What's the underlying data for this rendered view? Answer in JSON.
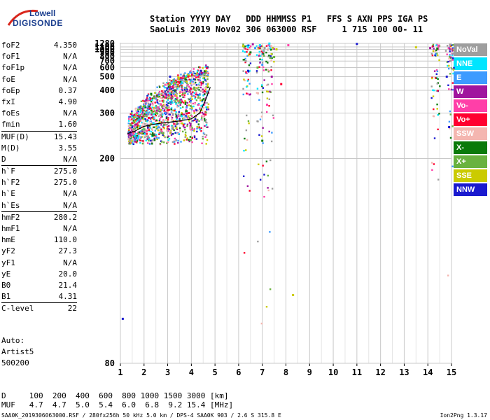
{
  "brand": {
    "line1": "Lowell",
    "line2": "DIGISONDE"
  },
  "header": {
    "line1": "Station YYYY DAY   DDD HHMMSS P1   FFS S AXN PPS IGA PS",
    "line2": "SaoLuis 2019 Nov02 306 063000 RSF     1 715 100 00- 11"
  },
  "params": [
    {
      "k": "foF2",
      "v": "4.350"
    },
    {
      "k": "foF1",
      "v": "N/A"
    },
    {
      "k": "foF1p",
      "v": "N/A"
    },
    {
      "k": "foE",
      "v": "N/A"
    },
    {
      "k": "foEp",
      "v": "0.37"
    },
    {
      "k": "fxI",
      "v": "4.90"
    },
    {
      "k": "foEs",
      "v": "N/A"
    },
    {
      "k": "fmin",
      "v": "1.60"
    },
    {
      "k": "MUF(D)",
      "v": "15.43",
      "sep": true
    },
    {
      "k": "M(D)",
      "v": "3.55"
    },
    {
      "k": "D",
      "v": "N/A"
    },
    {
      "k": "h`F",
      "v": "275.0",
      "sep": true
    },
    {
      "k": "h`F2",
      "v": "275.0"
    },
    {
      "k": "h`E",
      "v": "N/A"
    },
    {
      "k": "h`Es",
      "v": "N/A"
    },
    {
      "k": "hmF2",
      "v": "280.2",
      "sep": true
    },
    {
      "k": "hmF1",
      "v": "N/A"
    },
    {
      "k": "hmE",
      "v": "110.0"
    },
    {
      "k": "yF2",
      "v": "27.3"
    },
    {
      "k": "yF1",
      "v": "N/A"
    },
    {
      "k": "yE",
      "v": "20.0"
    },
    {
      "k": "B0",
      "v": "21.4"
    },
    {
      "k": "B1",
      "v": "4.31"
    },
    {
      "k": "C-level",
      "v": "22",
      "sep": true
    }
  ],
  "auto": {
    "line1": "Auto:",
    "line2": "Artist5",
    "line3": "500200"
  },
  "dmuf": {
    "d_row": "D     100  200  400  600  800 1000 1500 3000 [km]",
    "muf_row": "MUF   4.7  4.7  5.0  5.4  6.0  6.8  9.2 15.4 [MHz]"
  },
  "footer": {
    "left": "SAA0K_2019306063000.RSF / 280fx256h 50 kHz 5.0 km / DPS-4 SAA0K 903 / 2.6 S 315.8 E",
    "right": "Ion2Png 1.3.17"
  },
  "legend": [
    {
      "label": "NoVal",
      "color": "#9e9e9e"
    },
    {
      "label": "NNE",
      "color": "#00e5ff"
    },
    {
      "label": "E",
      "color": "#3d9bff"
    },
    {
      "label": "W",
      "color": "#a0159e"
    },
    {
      "label": "Vo-",
      "color": "#ff3fa8"
    },
    {
      "label": "Vo+",
      "color": "#ff0030"
    },
    {
      "label": "SSW",
      "color": "#f4b6b0"
    },
    {
      "label": "X-",
      "color": "#0a7a0a"
    },
    {
      "label": "X+",
      "color": "#69b23f"
    },
    {
      "label": "SSE",
      "color": "#cbcb00"
    },
    {
      "label": "NNW",
      "color": "#1a1acf"
    }
  ],
  "chart_data": {
    "type": "scatter",
    "title": "",
    "xlabel": "",
    "ylabel": "",
    "xlim": [
      1,
      15
    ],
    "ylim": [
      80,
      1280
    ],
    "x_ticks": [
      1,
      2,
      3,
      4,
      5,
      6,
      7,
      8,
      9,
      10,
      11,
      12,
      13,
      14,
      15
    ],
    "y_ticks": [
      80,
      200,
      300,
      400,
      500,
      600,
      700,
      800,
      900,
      1000,
      1100,
      1280
    ],
    "y_scale": "reciprocal",
    "grid": true,
    "series": [
      {
        "name": "NoVal",
        "points": [
          [
            1.4,
            230
          ],
          [
            2.0,
            250
          ],
          [
            3.2,
            260
          ],
          [
            6.3,
            700
          ],
          [
            7.1,
            1050
          ]
        ]
      },
      {
        "name": "NNE",
        "points": [
          [
            1.6,
            240
          ],
          [
            2.4,
            270
          ],
          [
            3.6,
            290
          ],
          [
            6.4,
            1100
          ],
          [
            6.9,
            1180
          ],
          [
            7.3,
            1270
          ]
        ]
      },
      {
        "name": "E",
        "points": [
          [
            1.8,
            280
          ],
          [
            2.9,
            300
          ],
          [
            3.8,
            320
          ],
          [
            6.7,
            1050
          ],
          [
            7.0,
            640
          ]
        ]
      },
      {
        "name": "W",
        "points": [
          [
            2.1,
            350
          ],
          [
            3.1,
            420
          ],
          [
            4.0,
            380
          ],
          [
            6.6,
            1230
          ],
          [
            7.4,
            500
          ],
          [
            14.1,
            1050
          ]
        ]
      },
      {
        "name": "Vo-",
        "points": [
          [
            1.7,
            300
          ],
          [
            2.6,
            320
          ],
          [
            3.4,
            360
          ],
          [
            4.3,
            330
          ],
          [
            7.2,
            330
          ],
          [
            8.1,
            1180
          ]
        ]
      },
      {
        "name": "Vo+",
        "points": [
          [
            1.5,
            270
          ],
          [
            2.2,
            285
          ],
          [
            3.0,
            310
          ],
          [
            3.9,
            300
          ],
          [
            4.6,
            295
          ],
          [
            7.8,
            440
          ]
        ]
      },
      {
        "name": "SSW",
        "points": [
          [
            1.9,
            260
          ],
          [
            2.8,
            275
          ],
          [
            3.7,
            285
          ],
          [
            4.5,
            290
          ]
        ]
      },
      {
        "name": "X-",
        "points": [
          [
            2.3,
            380
          ],
          [
            3.3,
            400
          ],
          [
            6.5,
            900
          ],
          [
            7.0,
            230
          ],
          [
            14.4,
            1030
          ]
        ]
      },
      {
        "name": "X+",
        "points": [
          [
            2.5,
            300
          ],
          [
            3.5,
            340
          ],
          [
            4.1,
            410
          ],
          [
            6.8,
            600
          ],
          [
            7.5,
            780
          ]
        ]
      },
      {
        "name": "SSE",
        "points": [
          [
            2.7,
            310
          ],
          [
            3.8,
            460
          ],
          [
            6.2,
            1150
          ],
          [
            7.6,
            1000
          ],
          [
            8.3,
            100
          ],
          [
            13.5,
            1080
          ]
        ]
      },
      {
        "name": "NNW",
        "points": [
          [
            1.1,
            92
          ],
          [
            3.1,
            500
          ],
          [
            4.4,
            560
          ],
          [
            6.4,
            560
          ],
          [
            11.0,
            1250
          ],
          [
            14.8,
            500
          ],
          [
            14.9,
            260
          ]
        ]
      }
    ],
    "trace": [
      [
        1.3,
        245
      ],
      [
        1.6,
        250
      ],
      [
        2.0,
        262
      ],
      [
        2.5,
        268
      ],
      [
        3.0,
        272
      ],
      [
        3.5,
        276
      ],
      [
        4.0,
        282
      ],
      [
        4.35,
        300
      ],
      [
        4.6,
        350
      ],
      [
        4.8,
        420
      ]
    ]
  }
}
